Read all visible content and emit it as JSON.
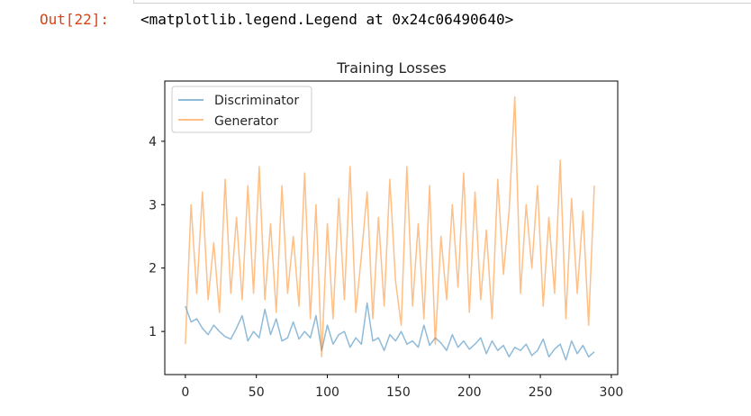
{
  "cell": {
    "prompt": "Out[22]:",
    "output_text": "<matplotlib.legend.Legend at 0x24c06490640>"
  },
  "chart_data": {
    "type": "line",
    "title": "Training Losses",
    "xlabel": "",
    "ylabel": "",
    "xlim": [
      -14.5,
      304.5
    ],
    "ylim": [
      0.32,
      4.95
    ],
    "xticks": [
      0,
      50,
      100,
      150,
      200,
      250,
      300
    ],
    "yticks": [
      1,
      2,
      3,
      4
    ],
    "grid": false,
    "legend_position": "upper-left",
    "x": [
      0,
      4,
      8,
      12,
      16,
      20,
      24,
      28,
      32,
      36,
      40,
      44,
      48,
      52,
      56,
      60,
      64,
      68,
      72,
      76,
      80,
      84,
      88,
      92,
      96,
      100,
      104,
      108,
      112,
      116,
      120,
      124,
      128,
      132,
      136,
      140,
      144,
      148,
      152,
      156,
      160,
      164,
      168,
      172,
      176,
      180,
      184,
      188,
      192,
      196,
      200,
      204,
      208,
      212,
      216,
      220,
      224,
      228,
      232,
      236,
      240,
      244,
      248,
      252,
      256,
      260,
      264,
      268,
      272,
      276,
      280,
      284,
      288
    ],
    "series": [
      {
        "name": "Discriminator",
        "color": "#1f77b4",
        "values": [
          1.4,
          1.15,
          1.2,
          1.05,
          0.95,
          1.1,
          1.0,
          0.92,
          0.88,
          1.05,
          1.25,
          0.85,
          1.0,
          0.9,
          1.35,
          0.95,
          1.2,
          0.85,
          0.9,
          1.15,
          0.88,
          1.0,
          0.9,
          1.25,
          0.7,
          1.1,
          0.8,
          0.95,
          1.0,
          0.75,
          0.9,
          0.8,
          1.45,
          0.85,
          0.9,
          0.7,
          0.95,
          0.85,
          1.0,
          0.8,
          0.85,
          0.75,
          1.1,
          0.78,
          0.9,
          0.82,
          0.7,
          0.95,
          0.75,
          0.85,
          0.72,
          0.8,
          0.9,
          0.65,
          0.85,
          0.7,
          0.78,
          0.6,
          0.75,
          0.7,
          0.8,
          0.62,
          0.7,
          0.88,
          0.6,
          0.72,
          0.8,
          0.55,
          0.85,
          0.65,
          0.78,
          0.6,
          0.68
        ]
      },
      {
        "name": "Generator",
        "color": "#ff7f0e",
        "values": [
          0.8,
          3.0,
          1.6,
          3.2,
          1.5,
          2.4,
          1.3,
          3.4,
          1.6,
          2.8,
          1.5,
          3.3,
          1.6,
          3.6,
          1.5,
          2.7,
          1.3,
          3.3,
          1.6,
          2.5,
          1.4,
          3.5,
          1.2,
          3.0,
          0.6,
          2.7,
          1.2,
          3.1,
          1.5,
          3.6,
          1.3,
          2.2,
          3.2,
          1.2,
          2.8,
          1.4,
          3.4,
          1.8,
          1.1,
          3.6,
          1.4,
          2.7,
          1.2,
          3.3,
          0.8,
          2.5,
          1.5,
          3.0,
          1.7,
          3.5,
          1.3,
          3.2,
          1.5,
          2.6,
          1.2,
          3.4,
          1.9,
          2.9,
          4.7,
          1.6,
          3.0,
          2.0,
          3.3,
          1.4,
          2.8,
          1.6,
          3.7,
          1.2,
          3.1,
          1.6,
          2.9,
          1.1,
          3.3
        ]
      }
    ]
  }
}
